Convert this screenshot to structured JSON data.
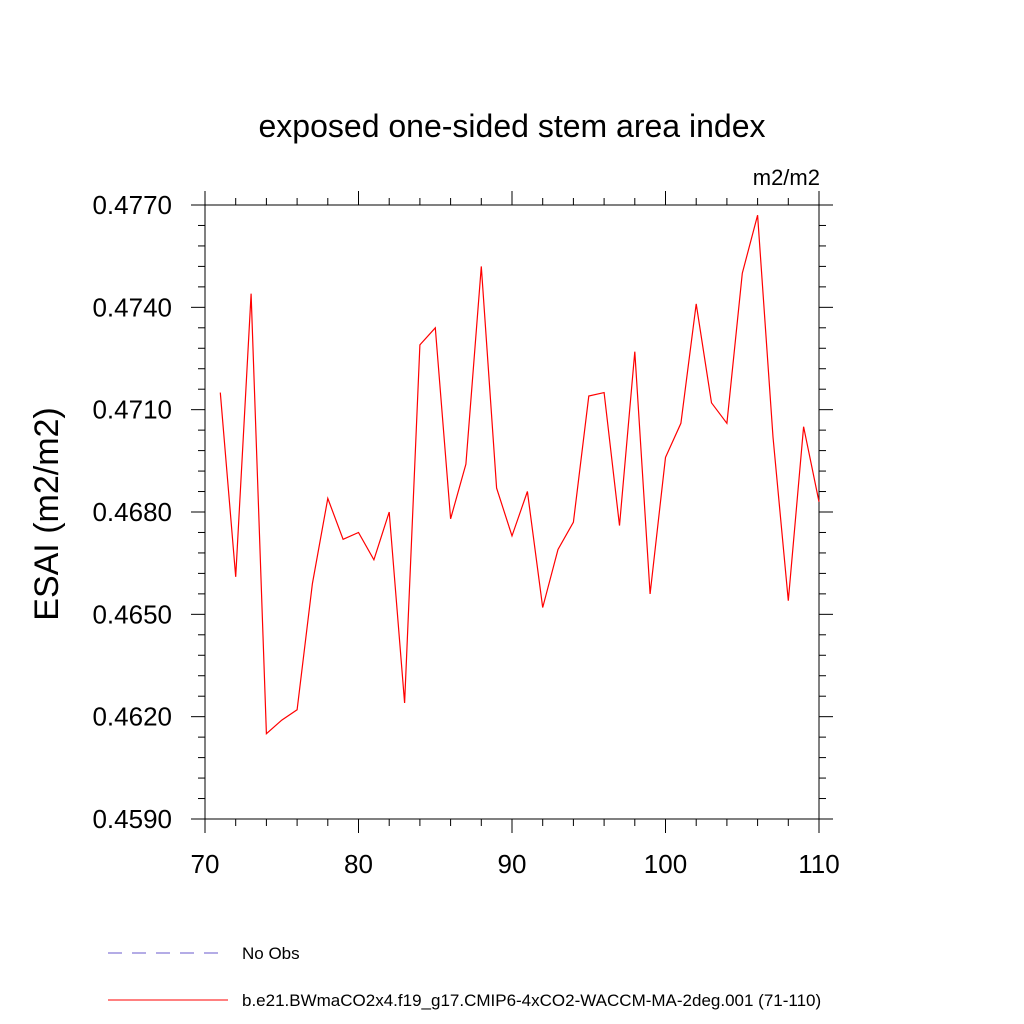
{
  "chart_data": {
    "type": "line",
    "title": "exposed one-sided stem area index",
    "units_label": "m2/m2",
    "ylabel": "ESAI  (m2/m2)",
    "xlabel": "",
    "xlim": [
      70,
      110
    ],
    "ylim": [
      0.459,
      0.477
    ],
    "x_ticks": [
      70,
      80,
      90,
      100,
      110
    ],
    "x_tick_labels": [
      "70",
      "80",
      "90",
      "100",
      "110"
    ],
    "y_ticks": [
      0.459,
      0.462,
      0.465,
      0.468,
      0.471,
      0.474,
      0.477
    ],
    "y_tick_labels": [
      "0.4590",
      "0.4620",
      "0.4650",
      "0.4680",
      "0.4710",
      "0.4740",
      "0.4770"
    ],
    "grid": false,
    "legend_position": "bottom",
    "series": [
      {
        "name": "No Obs",
        "color": "#6a5acd",
        "dash": "dashed",
        "x": [],
        "y": []
      },
      {
        "name": "b.e21.BWmaCO2x4.f19_g17.CMIP6-4xCO2-WACCM-MA-2deg.001 (71-110)",
        "color": "#ff0000",
        "dash": "solid",
        "x": [
          71,
          72,
          73,
          74,
          75,
          76,
          77,
          78,
          79,
          80,
          81,
          82,
          83,
          84,
          85,
          86,
          87,
          88,
          89,
          90,
          91,
          92,
          93,
          94,
          95,
          96,
          97,
          98,
          99,
          100,
          101,
          102,
          103,
          104,
          105,
          106,
          107,
          108,
          109,
          110
        ],
        "y": [
          0.4715,
          0.4661,
          0.4744,
          0.4615,
          0.4619,
          0.4622,
          0.4659,
          0.4684,
          0.4672,
          0.4674,
          0.4666,
          0.468,
          0.4624,
          0.4729,
          0.4734,
          0.4678,
          0.4694,
          0.4752,
          0.4687,
          0.4673,
          0.4686,
          0.4652,
          0.4669,
          0.4677,
          0.4714,
          0.4715,
          0.4676,
          0.4727,
          0.4656,
          0.4696,
          0.4706,
          0.4741,
          0.4712,
          0.4706,
          0.475,
          0.4767,
          0.4702,
          0.4654,
          0.4705,
          0.4683
        ]
      }
    ]
  }
}
